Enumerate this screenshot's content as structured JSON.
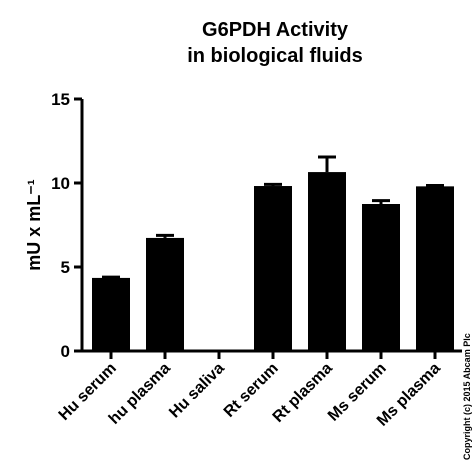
{
  "chart_data": {
    "type": "bar",
    "title": [
      "G6PDH Activity",
      "in biological fluids"
    ],
    "y_label": "mU x mL⁻¹",
    "copyright": "Copyright (c) 2015 Abcam Plc",
    "categories": [
      "Hu serum",
      "hu plasma",
      "Hu saliva",
      "Rt serum",
      "Rt plasma",
      "Ms serum",
      "Ms plasma"
    ],
    "values": [
      4.35,
      6.73,
      0,
      9.82,
      10.65,
      8.75,
      9.8
    ],
    "errors": [
      0.05,
      0.15,
      0,
      0.1,
      0.9,
      0.2,
      0.05
    ],
    "color": "#000000",
    "ylim": [
      0,
      15
    ],
    "yticks": [
      0,
      5,
      10,
      15
    ],
    "grid": false
  }
}
